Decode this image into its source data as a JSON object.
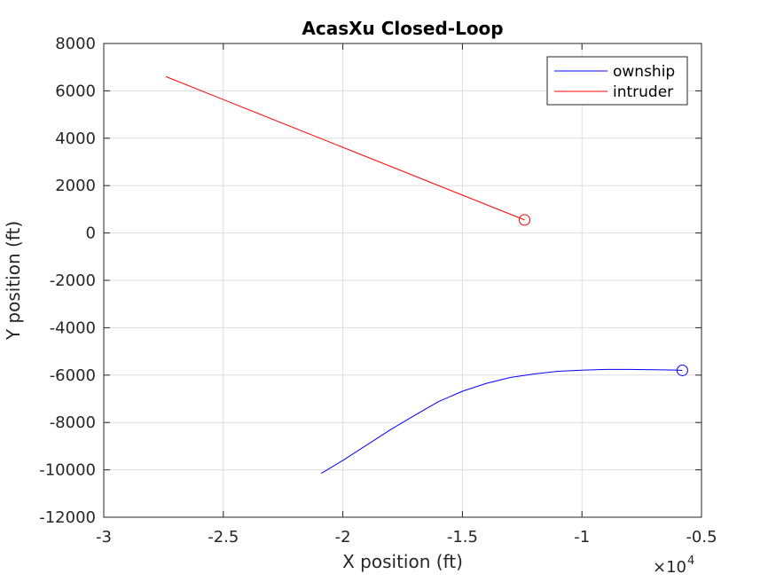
{
  "chart_data": {
    "type": "line",
    "title": "AcasXu Closed-Loop",
    "xlabel": "X position (ft)",
    "ylabel": "Y position (ft)",
    "x_exponent_label": "×10",
    "x_exponent_power": "4",
    "xlim": [
      -30000,
      -5000
    ],
    "ylim": [
      -12000,
      8000
    ],
    "xticks": [
      -30000,
      -25000,
      -20000,
      -15000,
      -10000,
      -5000
    ],
    "xtick_labels": [
      "-3",
      "-2.5",
      "-2",
      "-1.5",
      "-1",
      "-0.5"
    ],
    "yticks": [
      -12000,
      -10000,
      -8000,
      -6000,
      -4000,
      -2000,
      0,
      2000,
      4000,
      6000,
      8000
    ],
    "ytick_labels": [
      "-12000",
      "-10000",
      "-8000",
      "-6000",
      "-4000",
      "-2000",
      "0",
      "2000",
      "4000",
      "6000",
      "8000"
    ],
    "grid": true,
    "legend_position": "top-right",
    "series": [
      {
        "name": "ownship",
        "color": "#0000ff",
        "x": [
          -20900,
          -20000,
          -19000,
          -18000,
          -17000,
          -16000,
          -15000,
          -14000,
          -13000,
          -12000,
          -11000,
          -10000,
          -9000,
          -8000,
          -7000,
          -6000,
          -5800
        ],
        "y": [
          -10150,
          -9600,
          -8950,
          -8300,
          -7700,
          -7120,
          -6680,
          -6350,
          -6100,
          -5950,
          -5840,
          -5790,
          -5760,
          -5760,
          -5770,
          -5790,
          -5800
        ],
        "end_marker": "circle"
      },
      {
        "name": "intruder",
        "color": "#ff0000",
        "x": [
          -27400,
          -12400
        ],
        "y": [
          6600,
          550
        ],
        "end_marker": "circle"
      }
    ]
  }
}
